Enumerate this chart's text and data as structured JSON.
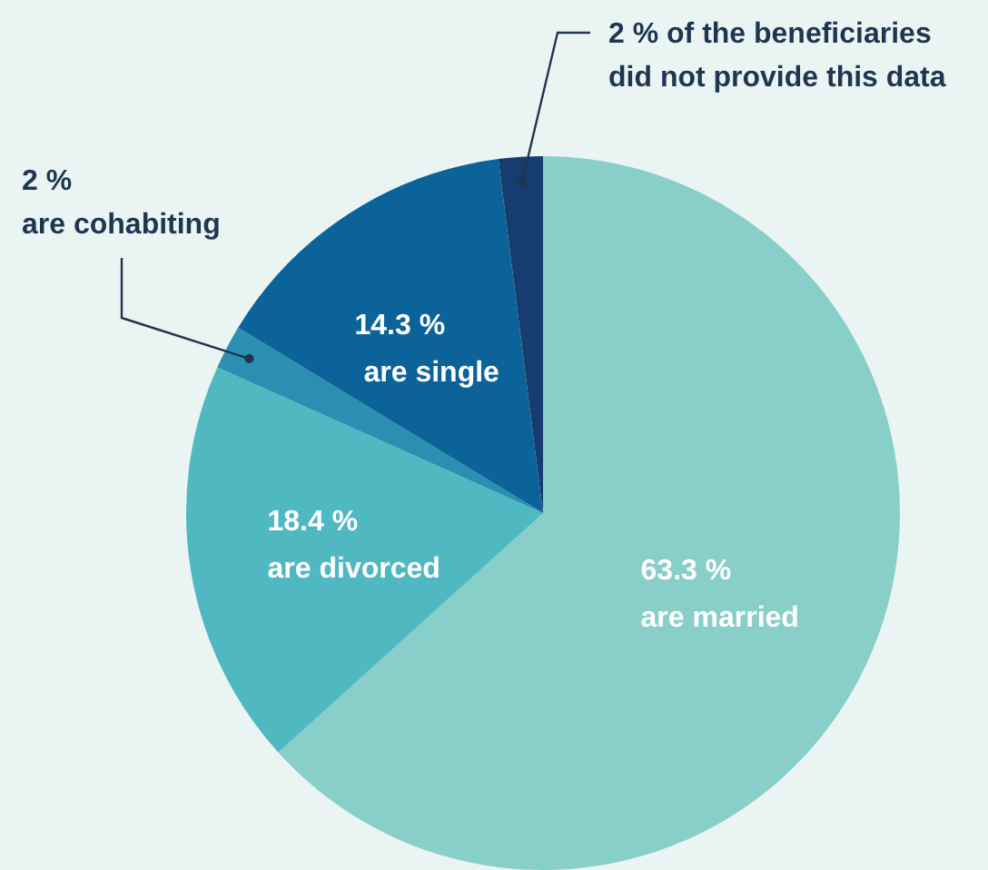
{
  "chart_data": {
    "type": "pie",
    "categories": [
      "are married",
      "are divorced",
      "are cohabiting",
      "are single",
      "of the beneficiaries did not provide this data"
    ],
    "values": [
      63.3,
      18.4,
      2,
      14.3,
      2
    ],
    "value_labels": [
      "63.3 %",
      "18.4 %",
      "2 %",
      "14.3 %",
      "2 %"
    ],
    "colors": [
      "#88cfc9",
      "#4fb8c1",
      "#2a8fb0",
      "#0b6399",
      "#173d70"
    ],
    "legend": false
  }
}
